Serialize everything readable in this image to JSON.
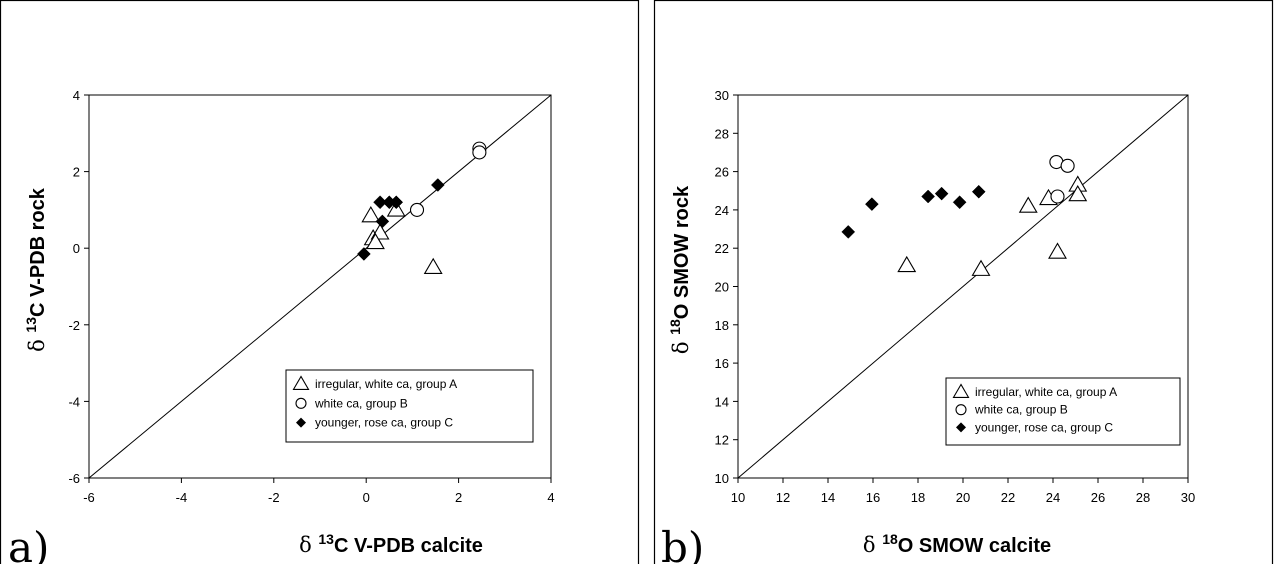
{
  "chart_data": [
    {
      "type": "scatter",
      "panel_label": "a)",
      "xlabel": {
        "delta": "δ",
        "sup": "13",
        "text": "C  V-PDB calcite"
      },
      "ylabel": {
        "delta": "δ",
        "sup": "13",
        "text": "C  V-PDB rock"
      },
      "xlim": [
        -6,
        4
      ],
      "ylim": [
        -6,
        4
      ],
      "xticks": [
        -6,
        -4,
        -2,
        0,
        2,
        4
      ],
      "yticks": [
        -6,
        -4,
        -2,
        0,
        2,
        4
      ],
      "reference_line": "1:1",
      "legend_position": "bottom-right",
      "series": [
        {
          "name": "irregular, white ca, group A",
          "marker": "triangle",
          "points": [
            [
              0.1,
              0.85
            ],
            [
              0.15,
              0.25
            ],
            [
              0.3,
              0.4
            ],
            [
              0.2,
              0.15
            ],
            [
              0.65,
              1.0
            ],
            [
              1.45,
              -0.5
            ]
          ]
        },
        {
          "name": "white ca, group B",
          "marker": "circle",
          "points": [
            [
              2.45,
              2.6
            ],
            [
              2.45,
              2.5
            ],
            [
              1.1,
              1.0
            ]
          ]
        },
        {
          "name": "younger, rose ca, group C",
          "marker": "diamond",
          "points": [
            [
              -0.05,
              -0.15
            ],
            [
              0.3,
              1.2
            ],
            [
              0.5,
              1.2
            ],
            [
              0.65,
              1.2
            ],
            [
              0.35,
              0.7
            ],
            [
              1.55,
              1.65
            ]
          ]
        }
      ]
    },
    {
      "type": "scatter",
      "panel_label": "b)",
      "xlabel": {
        "delta": "δ",
        "sup": "18",
        "text": "O SMOW calcite"
      },
      "ylabel": {
        "delta": "δ",
        "sup": "18",
        "text": "O SMOW rock"
      },
      "xlim": [
        10,
        30
      ],
      "ylim": [
        10,
        30
      ],
      "xticks": [
        10,
        12,
        14,
        16,
        18,
        20,
        22,
        24,
        26,
        28,
        30
      ],
      "yticks": [
        10,
        12,
        14,
        16,
        18,
        20,
        22,
        24,
        26,
        28,
        30
      ],
      "reference_line": "1:1",
      "legend_position": "bottom-right",
      "series": [
        {
          "name": "irregular, white ca, group A",
          "marker": "triangle",
          "points": [
            [
              17.5,
              21.1
            ],
            [
              20.8,
              20.9
            ],
            [
              22.9,
              24.2
            ],
            [
              23.8,
              24.6
            ],
            [
              25.1,
              25.3
            ],
            [
              25.1,
              24.8
            ],
            [
              24.2,
              21.8
            ]
          ]
        },
        {
          "name": "white ca, group B",
          "marker": "circle",
          "points": [
            [
              24.15,
              26.5
            ],
            [
              24.65,
              26.3
            ],
            [
              24.2,
              24.7
            ]
          ]
        },
        {
          "name": "younger, rose ca, group C",
          "marker": "diamond",
          "points": [
            [
              14.9,
              22.85
            ],
            [
              15.95,
              24.3
            ],
            [
              18.45,
              24.7
            ],
            [
              19.05,
              24.85
            ],
            [
              19.85,
              24.4
            ],
            [
              20.7,
              24.95
            ]
          ]
        }
      ]
    }
  ]
}
